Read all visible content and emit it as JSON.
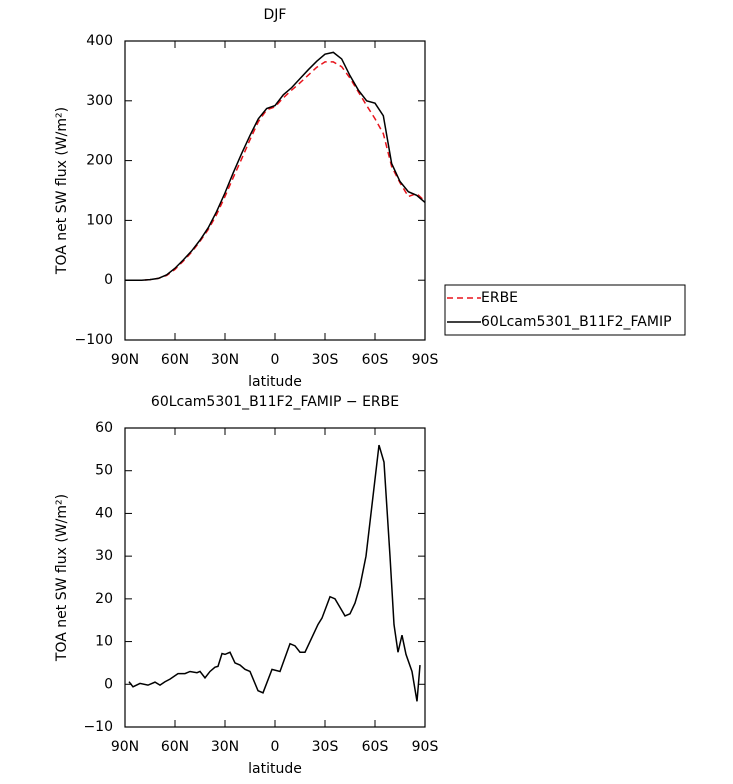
{
  "chart_data": [
    {
      "type": "line",
      "title": "DJF",
      "x_label": "latitude",
      "y_label": "TOA net SW flux (W/m²)",
      "x": [
        90,
        85,
        80,
        75,
        70,
        65,
        60,
        55,
        50,
        45,
        40,
        35,
        30,
        25,
        20,
        15,
        10,
        5,
        0,
        -5,
        -10,
        -15,
        -20,
        -25,
        -30,
        -35,
        -40,
        -45,
        -50,
        -55,
        -60,
        -65,
        -70,
        -75,
        -80,
        -85,
        -90
      ],
      "series": [
        {
          "name": "ERBE",
          "color": "#e8141c",
          "linestyle": "dashed",
          "values": [
            0,
            0,
            0,
            1,
            3,
            8,
            18,
            32,
            47,
            65,
            85,
            110,
            140,
            172,
            203,
            235,
            265,
            285,
            290,
            305,
            318,
            330,
            343,
            356,
            365,
            365,
            357,
            338,
            315,
            292,
            270,
            245,
            190,
            163,
            140,
            145,
            132
          ]
        },
        {
          "name": "60Lcam5301_B11F2_FAMIP",
          "color": "#000000",
          "linestyle": "solid",
          "values": [
            0,
            0,
            0,
            1,
            3,
            9,
            20,
            34,
            49,
            67,
            88,
            115,
            146,
            180,
            212,
            242,
            270,
            287,
            292,
            310,
            322,
            337,
            352,
            366,
            378,
            381,
            370,
            342,
            318,
            300,
            296,
            275,
            195,
            165,
            148,
            142,
            130
          ]
        }
      ],
      "xlim": [
        90,
        -90
      ],
      "ylim": [
        -100,
        400
      ],
      "xticks": [
        {
          "value": 90,
          "label": "90N"
        },
        {
          "value": 60,
          "label": "60N"
        },
        {
          "value": 30,
          "label": "30N"
        },
        0,
        {
          "value": -30,
          "label": "30S"
        },
        {
          "value": -60,
          "label": "60S"
        },
        {
          "value": -90,
          "label": "90S"
        }
      ],
      "yticks": [
        {
          "value": -100,
          "label": "−100"
        },
        0,
        100,
        200,
        300,
        400
      ],
      "legend": "right"
    },
    {
      "type": "line",
      "title": "60Lcam5301_B11F2_FAMIP − ERBE",
      "x_label": "latitude",
      "y_label": "TOA net SW flux (W/m²)",
      "x": [
        87.6,
        85.2,
        81,
        76.2,
        72,
        69,
        66,
        63,
        58.2,
        54,
        51,
        46.8,
        45,
        42,
        39,
        36,
        34.2,
        31.8,
        30,
        27,
        24,
        21,
        18,
        15,
        10.2,
        7.2,
        1.8,
        -3,
        -9,
        -12,
        -15,
        -18,
        -21,
        -25.8,
        -28.2,
        -33,
        -36,
        -39,
        -42,
        -45,
        -48,
        -51,
        -54.6,
        -58.2,
        -62.4,
        -65.4,
        -69,
        -71.4,
        -73.8,
        -76.2,
        -78.6,
        -82.2,
        -85.2,
        -87
      ],
      "series": [
        {
          "name": "60Lcam5301_B11F2_FAMIP − ERBE",
          "color": "#000000",
          "linestyle": "solid",
          "values": [
            0.6,
            -0.6,
            0.2,
            -0.2,
            0.5,
            -0.2,
            0.6,
            1.2,
            2.5,
            2.5,
            3,
            2.7,
            3,
            1.5,
            3,
            4,
            4.2,
            7.2,
            7,
            7.5,
            5,
            4.5,
            3.5,
            3,
            -1.5,
            -2,
            3.5,
            3,
            9.5,
            9,
            7.5,
            7.5,
            10,
            14,
            15.5,
            20.5,
            20,
            18,
            16,
            16.5,
            19,
            23,
            30,
            42,
            56,
            52,
            30,
            14,
            7.5,
            11.5,
            7,
            3,
            -4,
            4.5
          ]
        }
      ],
      "xlim": [
        90,
        -90
      ],
      "ylim": [
        -10,
        60
      ],
      "xticks": [
        {
          "value": 90,
          "label": "90N"
        },
        {
          "value": 60,
          "label": "60N"
        },
        {
          "value": 30,
          "label": "30N"
        },
        0,
        {
          "value": -30,
          "label": "30S"
        },
        {
          "value": -60,
          "label": "60S"
        },
        {
          "value": -90,
          "label": "90S"
        }
      ],
      "yticks": [
        {
          "value": -10,
          "label": "−10"
        },
        0,
        10,
        20,
        30,
        40,
        50,
        60
      ]
    }
  ]
}
